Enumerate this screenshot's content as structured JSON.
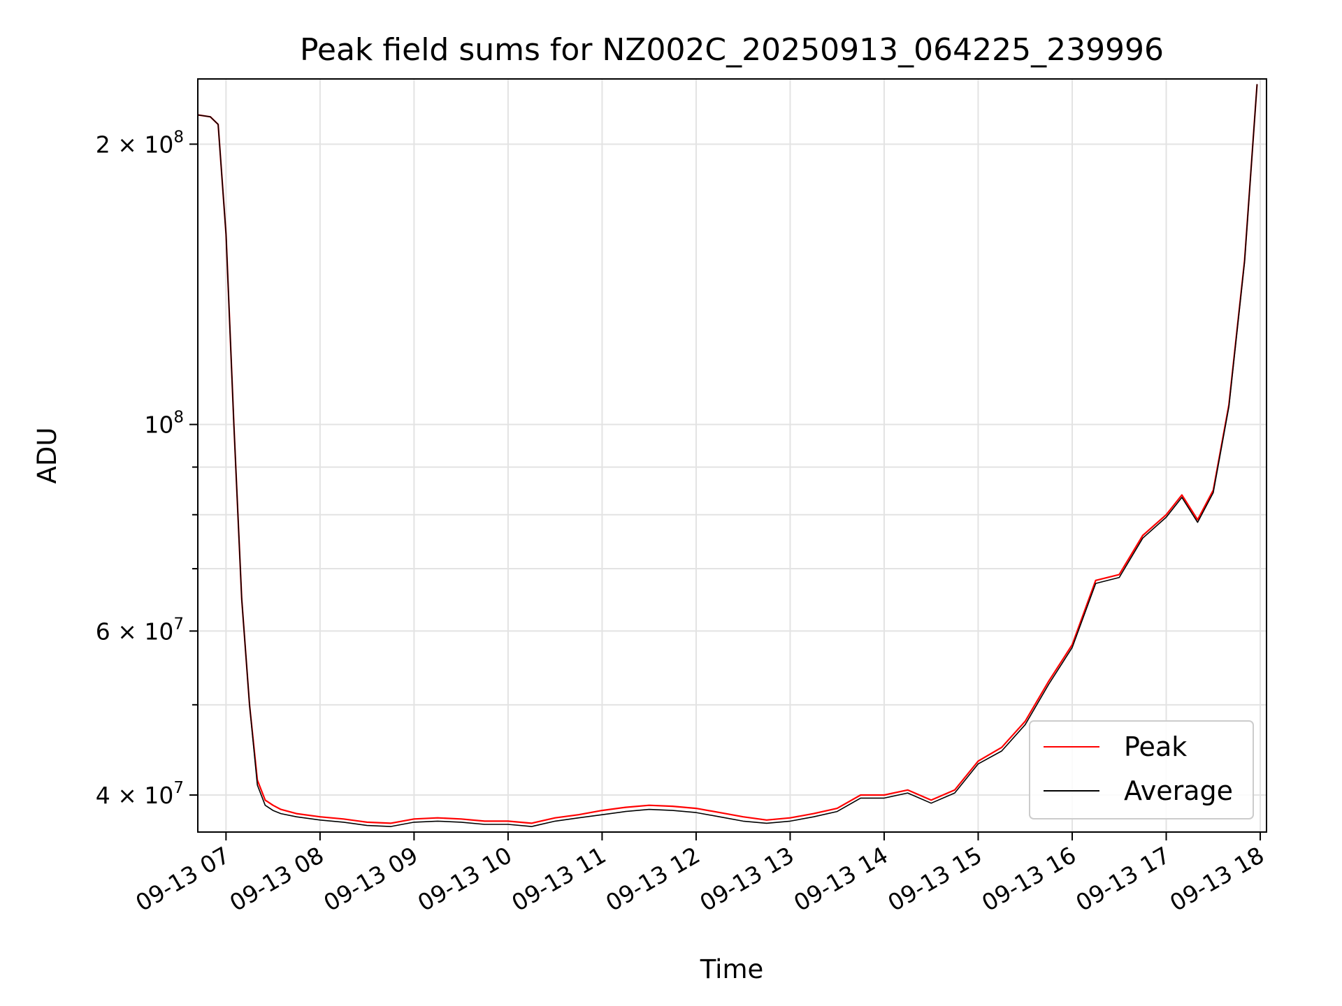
{
  "chart_data": {
    "type": "line",
    "title": "Peak field sums for NZ002C_20250913_064225_239996",
    "xlabel": "Time",
    "ylabel": "ADU",
    "yscale": "log",
    "xlim": [
      "2025-09-13 06:42",
      "2025-09-13 18:04"
    ],
    "ylim": [
      36500000,
      235000000
    ],
    "grid": true,
    "legend_position": "lower-right",
    "x_ticks": [
      "09-13 07",
      "09-13 08",
      "09-13 09",
      "09-13 10",
      "09-13 11",
      "09-13 12",
      "09-13 13",
      "09-13 14",
      "09-13 15",
      "09-13 16",
      "09-13 17",
      "09-13 18"
    ],
    "y_ticks": [
      {
        "value": 40000000,
        "base": "4 × 10",
        "exp": "7"
      },
      {
        "value": 60000000,
        "base": "6 × 10",
        "exp": "7"
      },
      {
        "value": 100000000,
        "base": "10",
        "exp": "8"
      },
      {
        "value": 200000000,
        "base": "2 × 10",
        "exp": "8"
      }
    ],
    "y_minor_ticks": [
      30000000,
      50000000,
      70000000,
      80000000,
      90000000
    ],
    "x": [
      "06:42",
      "06:50",
      "06:55",
      "07:00",
      "07:05",
      "07:10",
      "07:15",
      "07:20",
      "07:25",
      "07:30",
      "07:35",
      "07:45",
      "08:00",
      "08:15",
      "08:30",
      "08:45",
      "09:00",
      "09:15",
      "09:30",
      "09:45",
      "10:00",
      "10:15",
      "10:30",
      "10:45",
      "11:00",
      "11:15",
      "11:30",
      "11:45",
      "12:00",
      "12:15",
      "12:30",
      "12:45",
      "13:00",
      "13:15",
      "13:30",
      "13:45",
      "14:00",
      "14:15",
      "14:30",
      "14:45",
      "15:00",
      "15:15",
      "15:30",
      "15:45",
      "16:00",
      "16:15",
      "16:30",
      "16:45",
      "17:00",
      "17:10",
      "17:20",
      "17:30",
      "17:40",
      "17:50",
      "17:58"
    ],
    "series": [
      {
        "name": "Peak",
        "color": "#ff0000",
        "values": [
          215000000,
          214000000,
          210000000,
          160000000,
          100000000,
          65000000,
          50000000,
          41500000,
          39500000,
          39000000,
          38600000,
          38200000,
          37900000,
          37700000,
          37400000,
          37300000,
          37700000,
          37800000,
          37700000,
          37500000,
          37500000,
          37300000,
          37800000,
          38100000,
          38500000,
          38800000,
          39000000,
          38900000,
          38700000,
          38300000,
          37900000,
          37600000,
          37800000,
          38200000,
          38700000,
          40000000,
          40000000,
          40500000,
          39500000,
          40500000,
          43500000,
          45000000,
          48000000,
          53000000,
          58000000,
          68000000,
          69000000,
          76000000,
          80000000,
          84000000,
          79000000,
          85000000,
          105000000,
          150000000,
          232000000
        ]
      },
      {
        "name": "Average",
        "color": "#000000",
        "values": [
          215000000,
          214000000,
          210000000,
          160000000,
          100000000,
          65000000,
          50000000,
          41000000,
          39000000,
          38500000,
          38200000,
          37900000,
          37600000,
          37400000,
          37100000,
          37000000,
          37400000,
          37500000,
          37400000,
          37200000,
          37200000,
          37000000,
          37500000,
          37800000,
          38100000,
          38400000,
          38600000,
          38500000,
          38300000,
          37900000,
          37500000,
          37300000,
          37500000,
          37900000,
          38400000,
          39700000,
          39700000,
          40200000,
          39200000,
          40200000,
          43200000,
          44600000,
          47600000,
          52600000,
          57600000,
          67500000,
          68500000,
          75500000,
          79500000,
          83500000,
          78500000,
          84500000,
          104500000,
          149500000,
          232000000
        ]
      }
    ]
  }
}
